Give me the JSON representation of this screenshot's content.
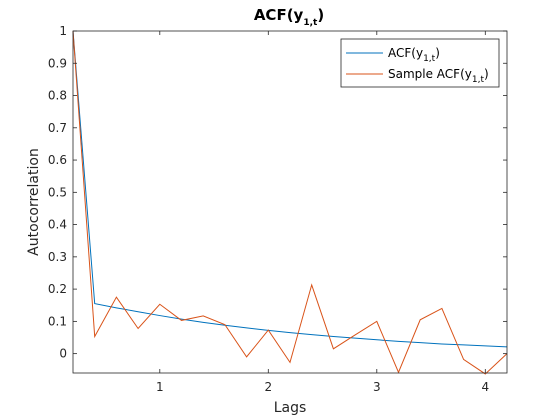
{
  "chart_data": {
    "type": "line",
    "title": "ACF(y",
    "title_subscript": "1,t",
    "title_suffix": ")",
    "xlabel": "Lags",
    "ylabel": "Autocorrelation",
    "xlim": [
      0.2,
      4.2
    ],
    "ylim": [
      -0.06,
      1.0
    ],
    "xticks": [
      1,
      2,
      3,
      4
    ],
    "yticks": [
      0,
      0.1,
      0.2,
      0.3,
      0.4,
      0.5,
      0.6,
      0.7,
      0.8,
      0.9,
      1
    ],
    "ytick_labels": [
      "0",
      "0.1",
      "0.2",
      "0.3",
      "0.4",
      "0.5",
      "0.6",
      "0.7",
      "0.8",
      "0.9",
      "1"
    ],
    "xtick_labels": [
      "1",
      "2",
      "3",
      "4"
    ],
    "grid": false,
    "legend_position": "top-right",
    "series": [
      {
        "name": "ACF(y",
        "name_subscript": "1,t",
        "name_suffix": ")",
        "color": "#0072BD",
        "x": [
          0.2,
          0.4,
          0.6,
          0.8,
          1.0,
          1.2,
          1.4,
          1.6,
          1.8,
          2.0,
          2.2,
          2.4,
          2.6,
          2.8,
          3.0,
          3.2,
          3.4,
          3.6,
          3.8,
          4.0,
          4.2
        ],
        "y": [
          1.0,
          0.155,
          0.142,
          0.13,
          0.118,
          0.107,
          0.097,
          0.088,
          0.08,
          0.072,
          0.065,
          0.059,
          0.053,
          0.048,
          0.043,
          0.038,
          0.034,
          0.03,
          0.027,
          0.024,
          0.021
        ]
      },
      {
        "name": "Sample ACF(y",
        "name_subscript": "1,t",
        "name_suffix": ")",
        "color": "#D95319",
        "x": [
          0.2,
          0.4,
          0.6,
          0.8,
          1.0,
          1.2,
          1.4,
          1.6,
          1.8,
          2.0,
          2.2,
          2.4,
          2.6,
          2.8,
          3.0,
          3.2,
          3.4,
          3.6,
          3.8,
          4.0,
          4.2
        ],
        "y": [
          1.0,
          0.053,
          0.175,
          0.078,
          0.153,
          0.103,
          0.117,
          0.09,
          -0.01,
          0.073,
          -0.027,
          0.213,
          0.015,
          0.058,
          0.1,
          -0.058,
          0.105,
          0.14,
          -0.018,
          -0.063,
          0.0
        ]
      }
    ]
  }
}
